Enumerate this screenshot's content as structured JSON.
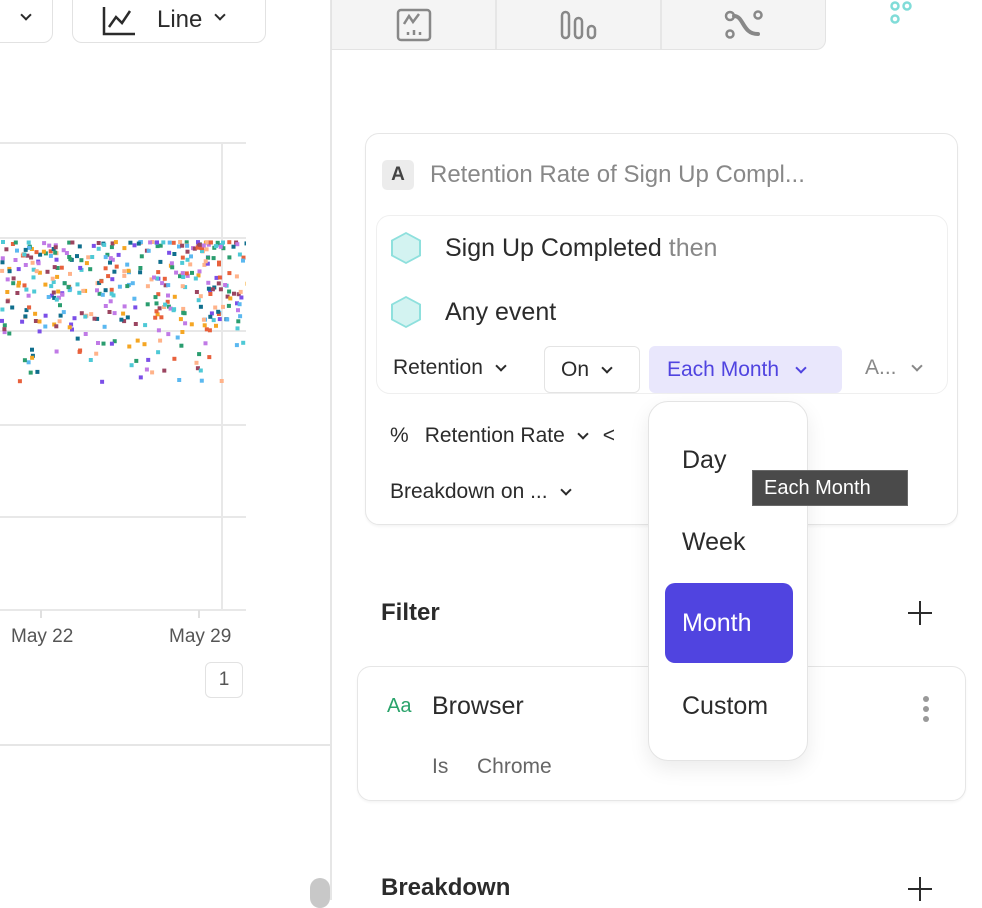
{
  "toolbar": {
    "chart_type_label": "Line"
  },
  "chart_data": {
    "type": "scatter",
    "x_tick_labels": [
      "May 22",
      "May 29"
    ],
    "grid": true,
    "series_colors": [
      "#4ec9d6",
      "#f5a623",
      "#7b4fe8",
      "#0f6e8c",
      "#e8613c",
      "#2a9d6f",
      "#c07ae6",
      "#ffb38a",
      "#9b4560",
      "#5bb8f0"
    ],
    "page_indicator": "1"
  },
  "tabs": [
    {
      "icon": "insights-icon"
    },
    {
      "icon": "funnels-icon"
    },
    {
      "icon": "flows-icon"
    },
    {
      "icon": "retention-icon",
      "active": true
    }
  ],
  "query": {
    "badge": "A",
    "title": "Retention Rate of Sign Up Compl...",
    "event_first": "Sign Up Completed",
    "event_then": "then",
    "event_second": "Any event",
    "retention_label": "Retention",
    "on_label": "On",
    "interval_label": "Each Month",
    "extra_label": "A...",
    "metric_symbol": "%",
    "metric_label": "Retention Rate",
    "metric_extra": "<",
    "breakdown_label": "Breakdown on ..."
  },
  "dropdown": {
    "options": [
      "Day",
      "Week",
      "Month",
      "Custom"
    ],
    "selected": "Month"
  },
  "tooltip": "Each Month",
  "filter": {
    "title": "Filter",
    "type_icon": "Aa",
    "property": "Browser",
    "operator": "Is",
    "value": "Chrome"
  },
  "breakdown": {
    "title": "Breakdown"
  },
  "colors": {
    "accent": "#5044e0",
    "accent_light": "#e9e7fc",
    "teal": "#8ee0dd",
    "string_type": "#2aa36b"
  }
}
